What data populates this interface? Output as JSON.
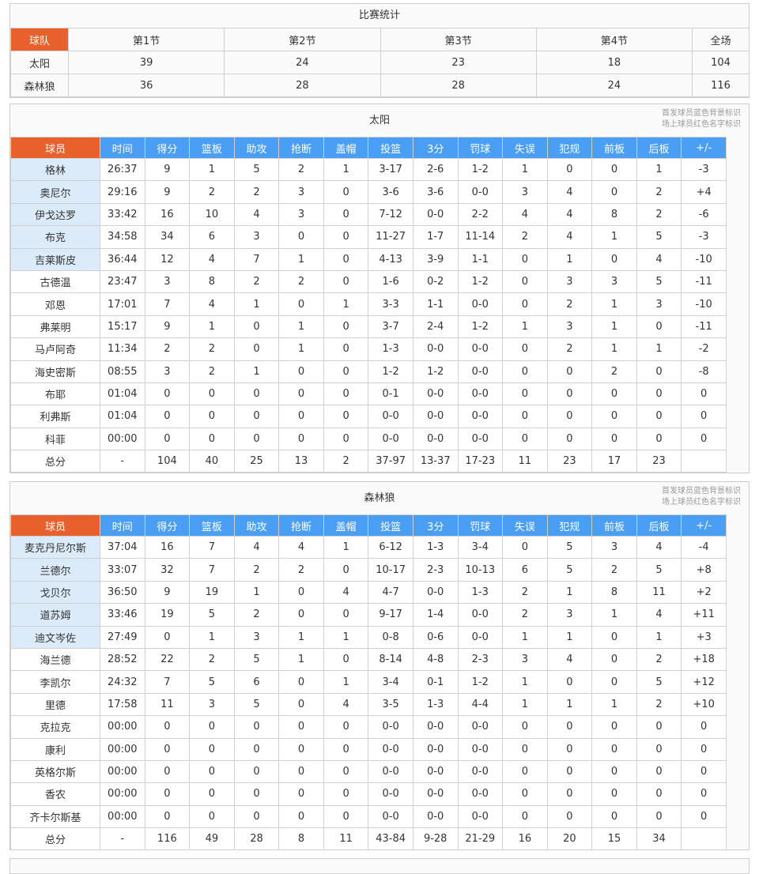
{
  "summary": {
    "title": "比赛统计",
    "headers": [
      "球队",
      "第1节",
      "第2节",
      "第3节",
      "第4节",
      "全场"
    ],
    "rows": [
      [
        "太阳",
        "39",
        "24",
        "23",
        "18",
        "104"
      ],
      [
        "森林狼",
        "36",
        "28",
        "28",
        "24",
        "116"
      ]
    ]
  },
  "note": [
    "首发球员蓝色背景标识",
    "场上球员红色名字标识"
  ],
  "stat_headers": [
    "球员",
    "时间",
    "得分",
    "篮板",
    "助攻",
    "抢断",
    "盖帽",
    "投篮",
    "3分",
    "罚球",
    "失误",
    "犯规",
    "前板",
    "后板",
    "+/-"
  ],
  "colors": {
    "accent": "#e8612c",
    "header": "#4a9ff5",
    "starter": "#dcebfa"
  },
  "teams": [
    {
      "name": "太阳",
      "starters": 5,
      "players": [
        [
          "格林",
          "26:37",
          "9",
          "1",
          "5",
          "2",
          "1",
          "3-17",
          "2-6",
          "1-2",
          "1",
          "0",
          "0",
          "1",
          "-3"
        ],
        [
          "奥尼尔",
          "29:16",
          "9",
          "2",
          "2",
          "3",
          "0",
          "3-6",
          "3-6",
          "0-0",
          "3",
          "4",
          "0",
          "2",
          "+4"
        ],
        [
          "伊戈达罗",
          "33:42",
          "16",
          "10",
          "4",
          "3",
          "0",
          "7-12",
          "0-0",
          "2-2",
          "4",
          "4",
          "8",
          "2",
          "-6"
        ],
        [
          "布克",
          "34:58",
          "34",
          "6",
          "3",
          "0",
          "0",
          "11-27",
          "1-7",
          "11-14",
          "2",
          "4",
          "1",
          "5",
          "-3"
        ],
        [
          "吉莱斯皮",
          "36:44",
          "12",
          "4",
          "7",
          "1",
          "0",
          "4-13",
          "3-9",
          "1-1",
          "0",
          "1",
          "0",
          "4",
          "-10"
        ],
        [
          "古德温",
          "23:47",
          "3",
          "8",
          "2",
          "2",
          "0",
          "1-6",
          "0-2",
          "1-2",
          "0",
          "3",
          "3",
          "5",
          "-11"
        ],
        [
          "邓恩",
          "17:01",
          "7",
          "4",
          "1",
          "0",
          "1",
          "3-3",
          "1-1",
          "0-0",
          "0",
          "2",
          "1",
          "3",
          "-10"
        ],
        [
          "弗莱明",
          "15:17",
          "9",
          "1",
          "0",
          "1",
          "0",
          "3-7",
          "2-4",
          "1-2",
          "1",
          "3",
          "1",
          "0",
          "-11"
        ],
        [
          "马卢阿奇",
          "11:34",
          "2",
          "2",
          "0",
          "1",
          "0",
          "1-3",
          "0-0",
          "0-0",
          "0",
          "2",
          "1",
          "1",
          "-2"
        ],
        [
          "海史密斯",
          "08:55",
          "3",
          "2",
          "1",
          "0",
          "0",
          "1-2",
          "1-2",
          "0-0",
          "0",
          "0",
          "2",
          "0",
          "-8"
        ],
        [
          "布耶",
          "01:04",
          "0",
          "0",
          "0",
          "0",
          "0",
          "0-1",
          "0-0",
          "0-0",
          "0",
          "0",
          "0",
          "0",
          "0"
        ],
        [
          "利弗斯",
          "01:04",
          "0",
          "0",
          "0",
          "0",
          "0",
          "0-0",
          "0-0",
          "0-0",
          "0",
          "0",
          "0",
          "0",
          "0"
        ],
        [
          "科菲",
          "00:00",
          "0",
          "0",
          "0",
          "0",
          "0",
          "0-0",
          "0-0",
          "0-0",
          "0",
          "0",
          "0",
          "0",
          "0"
        ]
      ],
      "total": [
        "总分",
        "-",
        "104",
        "40",
        "25",
        "13",
        "2",
        "37-97",
        "13-37",
        "17-23",
        "11",
        "23",
        "17",
        "23",
        ""
      ]
    },
    {
      "name": "森林狼",
      "starters": 5,
      "players": [
        [
          "麦克丹尼尔斯",
          "37:04",
          "16",
          "7",
          "4",
          "4",
          "1",
          "6-12",
          "1-3",
          "3-4",
          "0",
          "5",
          "3",
          "4",
          "-4"
        ],
        [
          "兰德尔",
          "33:07",
          "32",
          "7",
          "2",
          "2",
          "0",
          "10-17",
          "2-3",
          "10-13",
          "6",
          "5",
          "2",
          "5",
          "+8"
        ],
        [
          "戈贝尔",
          "36:50",
          "9",
          "19",
          "1",
          "0",
          "4",
          "4-7",
          "0-0",
          "1-3",
          "2",
          "1",
          "8",
          "11",
          "+2"
        ],
        [
          "道苏姆",
          "33:46",
          "19",
          "5",
          "2",
          "0",
          "0",
          "9-17",
          "1-4",
          "0-0",
          "2",
          "3",
          "1",
          "4",
          "+11"
        ],
        [
          "迪文岑佐",
          "27:49",
          "0",
          "1",
          "3",
          "1",
          "1",
          "0-8",
          "0-6",
          "0-0",
          "1",
          "1",
          "0",
          "1",
          "+3"
        ],
        [
          "海兰德",
          "28:52",
          "22",
          "2",
          "5",
          "1",
          "0",
          "8-14",
          "4-8",
          "2-3",
          "3",
          "4",
          "0",
          "2",
          "+18"
        ],
        [
          "李凯尔",
          "24:32",
          "7",
          "5",
          "6",
          "0",
          "1",
          "3-4",
          "0-1",
          "1-2",
          "1",
          "0",
          "0",
          "5",
          "+12"
        ],
        [
          "里德",
          "17:58",
          "11",
          "3",
          "5",
          "0",
          "4",
          "3-5",
          "1-3",
          "4-4",
          "1",
          "1",
          "1",
          "2",
          "+10"
        ],
        [
          "克拉克",
          "00:00",
          "0",
          "0",
          "0",
          "0",
          "0",
          "0-0",
          "0-0",
          "0-0",
          "0",
          "0",
          "0",
          "0",
          "0"
        ],
        [
          "康利",
          "00:00",
          "0",
          "0",
          "0",
          "0",
          "0",
          "0-0",
          "0-0",
          "0-0",
          "0",
          "0",
          "0",
          "0",
          "0"
        ],
        [
          "英格尔斯",
          "00:00",
          "0",
          "0",
          "0",
          "0",
          "0",
          "0-0",
          "0-0",
          "0-0",
          "0",
          "0",
          "0",
          "0",
          "0"
        ],
        [
          "香农",
          "00:00",
          "0",
          "0",
          "0",
          "0",
          "0",
          "0-0",
          "0-0",
          "0-0",
          "0",
          "0",
          "0",
          "0",
          "0"
        ],
        [
          "齐卡尔斯基",
          "00:00",
          "0",
          "0",
          "0",
          "0",
          "0",
          "0-0",
          "0-0",
          "0-0",
          "0",
          "0",
          "0",
          "0",
          "0"
        ]
      ],
      "total": [
        "总分",
        "-",
        "116",
        "49",
        "28",
        "8",
        "11",
        "43-84",
        "9-28",
        "21-29",
        "16",
        "20",
        "15",
        "34",
        ""
      ]
    }
  ]
}
